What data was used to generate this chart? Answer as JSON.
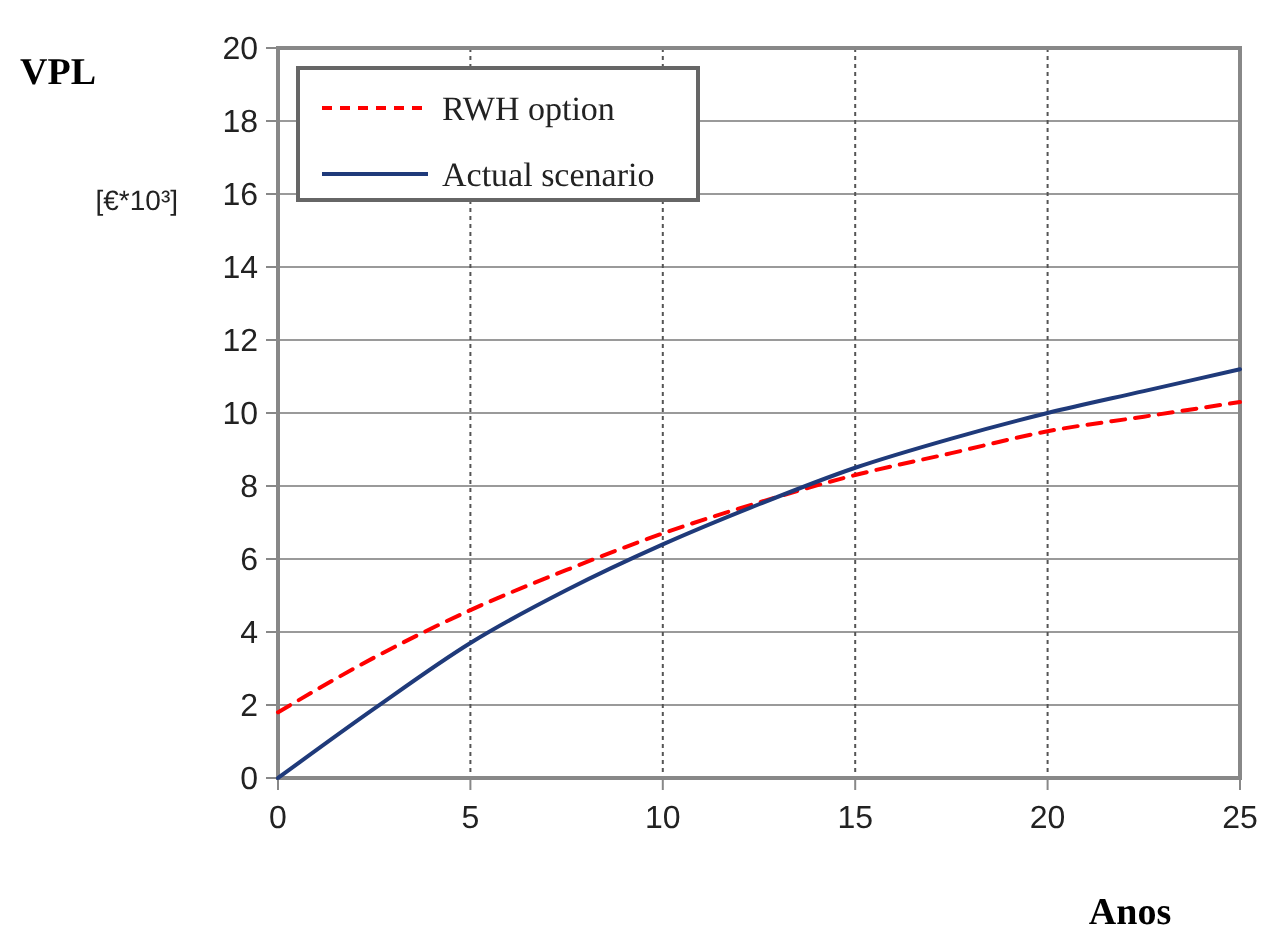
{
  "chart_data": {
    "type": "line",
    "xlabel": "Anos",
    "ylabel": "VPL",
    "annotations": [
      "[€*10³]"
    ],
    "x": [
      0,
      2.5,
      5,
      7.5,
      10,
      12.5,
      15,
      17.5,
      20,
      22.5,
      25
    ],
    "series": [
      {
        "name": "RWH option",
        "color": "#ff0000",
        "line_style": "dashed",
        "values": [
          1.8,
          3.3,
          4.6,
          5.7,
          6.7,
          7.55,
          8.3,
          8.9,
          9.5,
          9.9,
          10.3
        ]
      },
      {
        "name": "Actual scenario",
        "color": "#1f3a7a",
        "line_style": "solid",
        "values": [
          0,
          1.9,
          3.7,
          5.15,
          6.4,
          7.5,
          8.5,
          9.3,
          10.0,
          10.6,
          11.2
        ]
      }
    ],
    "xlim": [
      0,
      25
    ],
    "xticks": [
      0,
      5,
      10,
      15,
      20,
      25
    ],
    "ylim": [
      0,
      20
    ],
    "yticks": [
      0,
      2,
      4,
      6,
      8,
      10,
      12,
      14,
      16,
      18,
      20
    ],
    "grid": true,
    "legend": "top left",
    "marker": "none"
  }
}
